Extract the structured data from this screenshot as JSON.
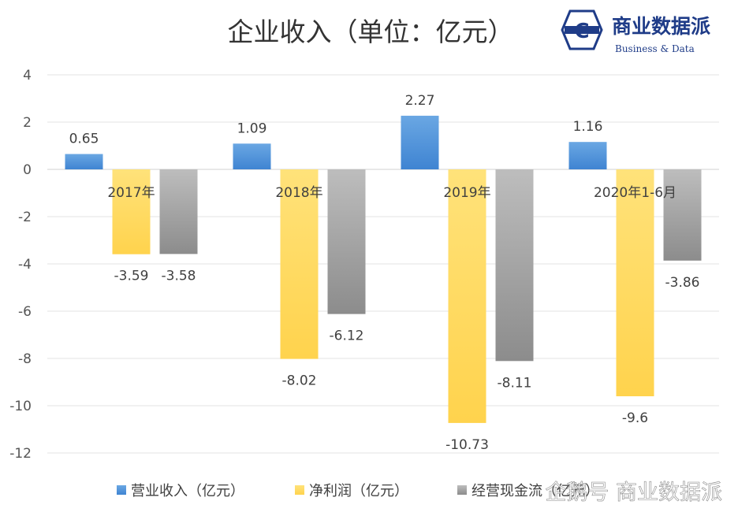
{
  "chart_data": {
    "type": "bar",
    "title": "企业收入（单位：亿元）",
    "categories": [
      "2017年",
      "2018年",
      "2019年",
      "2020年1-6月"
    ],
    "series": [
      {
        "name": "营业收入（亿元）",
        "values": [
          0.65,
          1.09,
          2.27,
          1.16
        ],
        "color": "#4a8fd6"
      },
      {
        "name": "净利润（亿元）",
        "values": [
          -3.59,
          -8.02,
          -10.73,
          -9.6
        ],
        "color": "#ffd966"
      },
      {
        "name": "经营现金流（亿元）",
        "values": [
          -3.58,
          -6.12,
          -8.11,
          -3.86
        ],
        "color": "#a6a6a6"
      }
    ],
    "yticks": [
      4,
      2,
      0,
      -2,
      -4,
      -6,
      -8,
      -10,
      -12
    ],
    "ylim": [
      -12,
      4
    ],
    "grid": true,
    "legend": "bottom"
  },
  "logo": {
    "icon_letter": "C",
    "name": "商业数据派",
    "subtitle": "Business & Data"
  },
  "watermark": {
    "text": "企鹅号 商业数据派"
  }
}
